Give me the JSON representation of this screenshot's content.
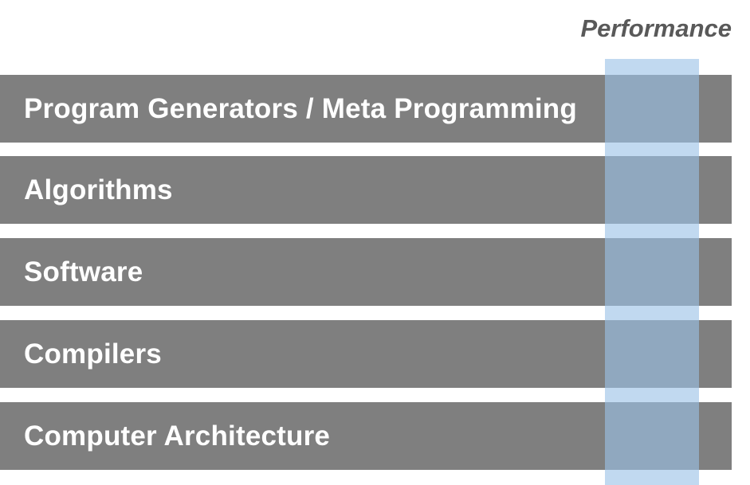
{
  "column_label": "Performance",
  "layers": [
    {
      "label": "Program Generators / Meta Programming"
    },
    {
      "label": "Algorithms"
    },
    {
      "label": "Software"
    },
    {
      "label": "Compilers"
    },
    {
      "label": "Computer Architecture"
    }
  ],
  "colors": {
    "layer_fill": "#7f7f7f",
    "layer_text": "#ffffff",
    "column_fill": "#9bc2e6",
    "column_label_text": "#595959"
  }
}
